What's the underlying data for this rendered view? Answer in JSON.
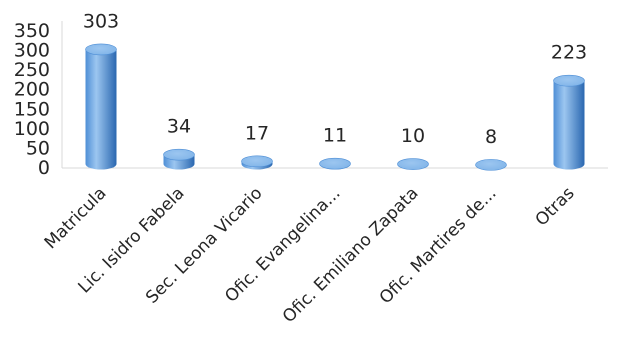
{
  "chart_data": {
    "type": "bar",
    "categories": [
      "Matricula",
      "Lic. Isidro Fabela",
      "Sec. Leona Vicario",
      "Ofic. Evangelina...",
      "Ofic. Emiliano Zapata",
      "Ofic. Martires de...",
      "Otras"
    ],
    "values": [
      303,
      34,
      17,
      11,
      10,
      8,
      223
    ],
    "data_labels": [
      "303",
      "34",
      "17",
      "11",
      "10",
      "8",
      "223"
    ],
    "yticks": [
      "0",
      "50",
      "100",
      "150",
      "200",
      "250",
      "300",
      "350"
    ],
    "ylim": [
      0,
      350
    ],
    "grid": false,
    "legend": "none",
    "bar_style": "3d-cylinder",
    "colors": {
      "bar_main": "#4f8fd6",
      "bar_light": "#9cc6f0",
      "bar_dark": "#2a67b0",
      "bar_top": "#7fb3e8",
      "axis": "#d9d9d9",
      "text": "#262626"
    }
  }
}
